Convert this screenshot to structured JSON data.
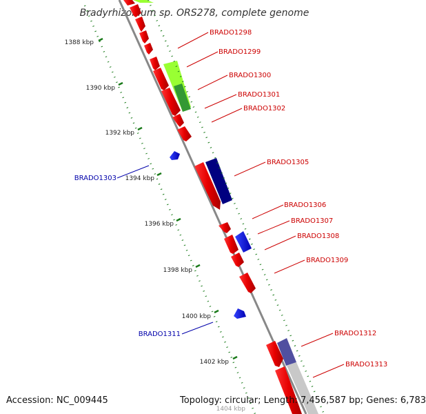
{
  "title": "Bradyrhizobium sp. ORS278, complete genome",
  "footer": {
    "accession": "Accession: NC_009445",
    "summary": "Topology: circular; Length: 7,456,587 bp; Genes: 6,783"
  },
  "colors": {
    "forward_gene": "#e60000",
    "reverse_gene": "#0000e6",
    "forward_label": "#cc0000",
    "reverse_label": "#0000aa",
    "tick": "#1a7a1a",
    "backbone": "#888888",
    "cds_light_green": "#99ff33",
    "cds_dark_green": "#339933",
    "cds_navy": "#000080",
    "cds_slate": "#5050a0",
    "cds_gray": "#c8c8c8"
  },
  "ticks": [
    "1388 kbp",
    "1390 kbp",
    "1392 kbp",
    "1394 kbp",
    "1396 kbp",
    "1398 kbp",
    "1400 kbp",
    "1402 kbp",
    "1404 kbp"
  ],
  "forward_labels": [
    "BRADO1298",
    "BRADO1299",
    "BRADO1300",
    "BRADO1301",
    "BRADO1302",
    "BRADO1305",
    "BRADO1306",
    "BRADO1307",
    "BRADO1308",
    "BRADO1309",
    "BRADO1312",
    "BRADO1313"
  ],
  "reverse_labels": [
    "BRADO1303",
    "BRADO1311"
  ]
}
